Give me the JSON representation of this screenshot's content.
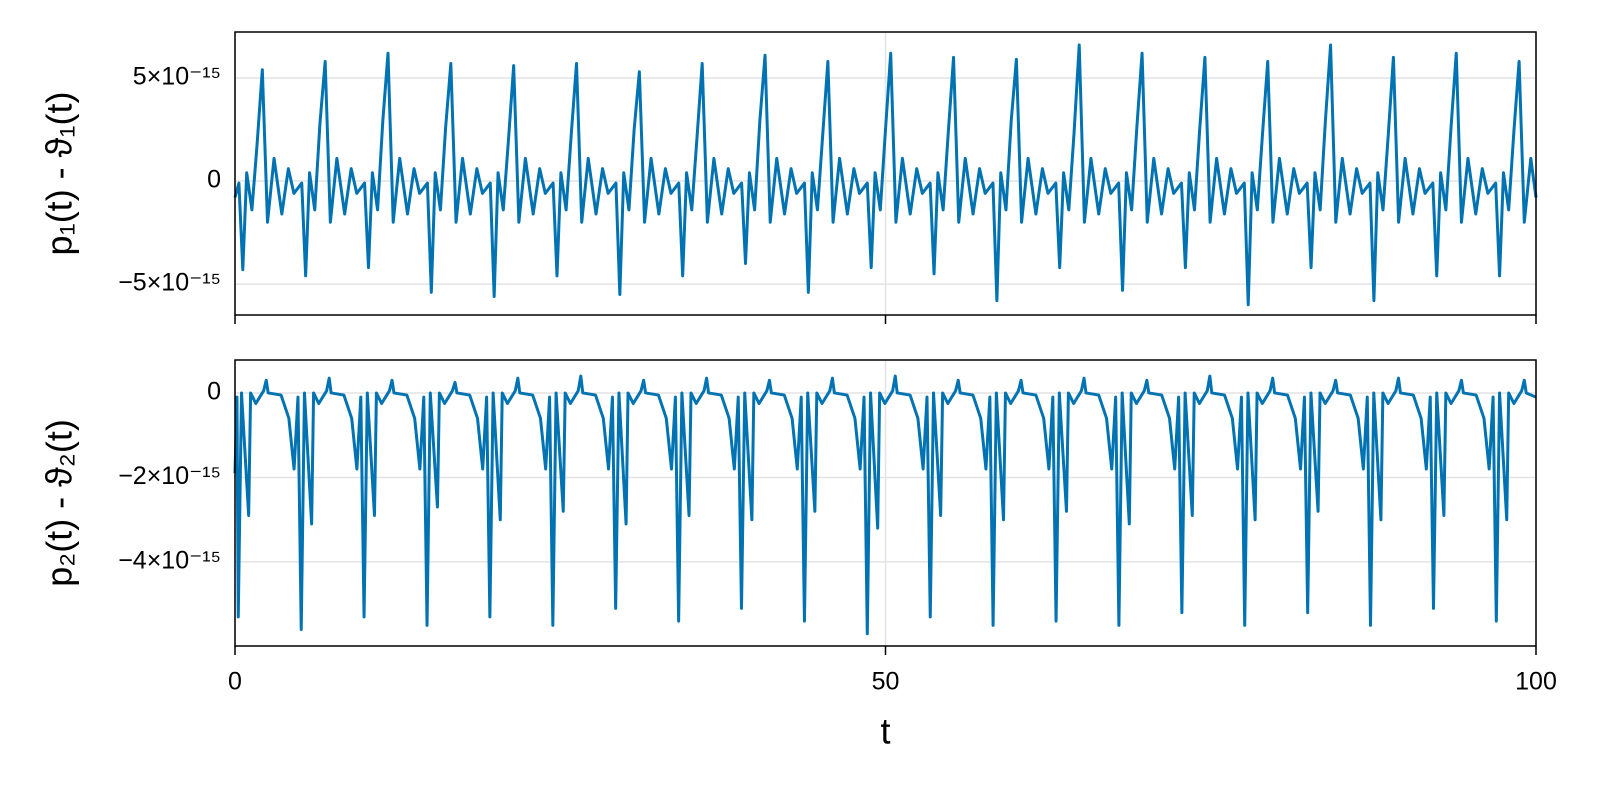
{
  "chart_data": [
    {
      "type": "line",
      "y_label": "p₁(t) - ϑ₁(t)",
      "color": "#0173b2",
      "grid": true,
      "xlim": [
        0,
        100
      ],
      "xticks": [
        0,
        50,
        100
      ],
      "ylim": [
        -6.5e-15,
        7.23e-15
      ],
      "yticks": [
        {
          "value": 5e-15,
          "label": "5×10⁻¹⁵"
        },
        0,
        {
          "value": -5e-15,
          "label": "−5×10⁻¹⁵"
        }
      ],
      "x": [
        0,
        0.3,
        0.6,
        0.9,
        1.3,
        1.7,
        2.1,
        2.5,
        3.0,
        3.6,
        4.1,
        4.53,
        5.13,
        5.43,
        5.73,
        6.13,
        6.53,
        6.93,
        7.33,
        7.83,
        8.43,
        8.93,
        9.36,
        9.96,
        10.26,
        10.56,
        10.96,
        11.36,
        11.76,
        12.16,
        12.66,
        13.26,
        13.76,
        14.19,
        14.79,
        15.09,
        15.39,
        15.79,
        16.19,
        16.59,
        16.99,
        17.49,
        18.09,
        18.59,
        19.02,
        19.62,
        19.92,
        20.22,
        20.62,
        21.02,
        21.42,
        21.82,
        22.32,
        22.92,
        23.42,
        23.85,
        24.45,
        24.75,
        25.05,
        25.45,
        25.85,
        26.25,
        26.65,
        27.15,
        27.75,
        28.25,
        28.68,
        29.28,
        29.58,
        29.88,
        30.28,
        30.68,
        31.08,
        31.48,
        31.98,
        32.58,
        33.08,
        33.51,
        34.11,
        34.41,
        34.71,
        35.11,
        35.51,
        35.91,
        36.31,
        36.81,
        37.41,
        37.91,
        38.34,
        38.94,
        39.24,
        39.54,
        39.94,
        40.34,
        40.74,
        41.14,
        41.64,
        42.24,
        42.74,
        43.17,
        43.77,
        44.07,
        44.37,
        44.77,
        45.17,
        45.57,
        45.97,
        46.47,
        47.07,
        47.57,
        48.0,
        48.6,
        48.9,
        49.2,
        49.6,
        50.0,
        50.4,
        50.8,
        51.3,
        51.9,
        52.4,
        52.83,
        53.43,
        53.73,
        54.03,
        54.43,
        54.83,
        55.23,
        55.63,
        56.13,
        56.73,
        57.23,
        57.66,
        58.26,
        58.56,
        58.86,
        59.26,
        59.66,
        60.06,
        60.46,
        60.96,
        61.56,
        62.06,
        62.49,
        63.09,
        63.39,
        63.69,
        64.09,
        64.49,
        64.89,
        65.29,
        65.79,
        66.39,
        66.89,
        67.32,
        67.92,
        68.22,
        68.52,
        68.92,
        69.32,
        69.72,
        70.12,
        70.62,
        71.22,
        71.72,
        72.15,
        72.75,
        73.05,
        73.35,
        73.75,
        74.15,
        74.55,
        74.95,
        75.45,
        76.05,
        76.55,
        76.98,
        77.58,
        77.88,
        78.18,
        78.58,
        78.98,
        79.38,
        79.78,
        80.28,
        80.88,
        81.38,
        81.81,
        82.41,
        82.71,
        83.01,
        83.41,
        83.81,
        84.21,
        84.61,
        85.11,
        85.71,
        86.21,
        86.64,
        87.24,
        87.54,
        87.84,
        88.24,
        88.64,
        89.04,
        89.44,
        89.94,
        90.54,
        91.04,
        91.47,
        92.07,
        92.37,
        92.67,
        93.07,
        93.47,
        93.87,
        94.27,
        94.77,
        95.37,
        95.87,
        96.3,
        96.9,
        97.2,
        97.5,
        97.9,
        98.3,
        98.7,
        99.1,
        99.6,
        100
      ],
      "values": [
        -8e-16,
        -1e-16,
        -4.3e-15,
        4e-16,
        -1.4e-15,
        1.8e-15,
        5.4e-15,
        -2e-15,
        1.1e-15,
        -1.6e-15,
        6e-16,
        -6e-16,
        -1e-16,
        -4.6e-15,
        4e-16,
        -1.4e-15,
        2.8e-15,
        5.8e-15,
        -2e-15,
        1.1e-15,
        -1.6e-15,
        6e-16,
        -6e-16,
        -1e-16,
        -4.2e-15,
        4e-16,
        -1.4e-15,
        2.9e-15,
        6.2e-15,
        -2e-15,
        1.1e-15,
        -1.6e-15,
        6e-16,
        -6e-16,
        -1e-16,
        -5.4e-15,
        4e-16,
        -1.4e-15,
        2.6e-15,
        5.7e-15,
        -2e-15,
        1.1e-15,
        -1.6e-15,
        6e-16,
        -6e-16,
        -1e-16,
        -5.6e-15,
        4e-16,
        -1.4e-15,
        2e-15,
        5.6e-15,
        -2e-15,
        1.1e-15,
        -1.6e-15,
        6e-16,
        -6e-16,
        -1e-16,
        -4.6e-15,
        4e-16,
        -1.4e-15,
        2.3e-15,
        5.7e-15,
        -2e-15,
        1.1e-15,
        -1.6e-15,
        6e-16,
        -6e-16,
        -1e-16,
        -5.5e-15,
        4e-16,
        -1.4e-15,
        2.5e-15,
        5.3e-15,
        -2e-15,
        1.1e-15,
        -1.6e-15,
        6e-16,
        -6e-16,
        -1e-16,
        -4.6e-15,
        4e-16,
        -1.4e-15,
        2.1e-15,
        5.7e-15,
        -2e-15,
        1.1e-15,
        -1.6e-15,
        6e-16,
        -6e-16,
        -1e-16,
        -4e-15,
        4e-16,
        -1.4e-15,
        2.9e-15,
        6.1e-15,
        -2e-15,
        1.1e-15,
        -1.6e-15,
        6e-16,
        -6e-16,
        -1e-16,
        -5.4e-15,
        4e-16,
        -1.4e-15,
        2.2e-15,
        5.8e-15,
        -2e-15,
        1.1e-15,
        -1.6e-15,
        6e-16,
        -6e-16,
        -1e-16,
        -4.2e-15,
        4e-16,
        -1.4e-15,
        2.5e-15,
        6.2e-15,
        -2e-15,
        1.1e-15,
        -1.6e-15,
        6e-16,
        -6e-16,
        -1e-16,
        -4.5e-15,
        4e-16,
        -1.4e-15,
        2.4e-15,
        6e-15,
        -2e-15,
        1.1e-15,
        -1.6e-15,
        6e-16,
        -6e-16,
        -1e-16,
        -5.8e-15,
        4e-16,
        -1.4e-15,
        2.9e-15,
        5.9e-15,
        -2e-15,
        1.1e-15,
        -1.6e-15,
        6e-16,
        -6e-16,
        -1e-16,
        -4.2e-15,
        4e-16,
        -1.4e-15,
        2.3e-15,
        6.6e-15,
        -2e-15,
        1.1e-15,
        -1.6e-15,
        6e-16,
        -6e-16,
        -1e-16,
        -5.3e-15,
        4e-16,
        -1.4e-15,
        2.6e-15,
        6.2e-15,
        -2e-15,
        1.1e-15,
        -1.6e-15,
        6e-16,
        -6e-16,
        -1e-16,
        -4.2e-15,
        4e-16,
        -1.4e-15,
        2.5e-15,
        6e-15,
        -2e-15,
        1.1e-15,
        -1.6e-15,
        6e-16,
        -6e-16,
        -1e-16,
        -6e-15,
        4e-16,
        -1.4e-15,
        2.3e-15,
        5.8e-15,
        -2e-15,
        1.1e-15,
        -1.6e-15,
        6e-16,
        -6e-16,
        -1e-16,
        -4.2e-15,
        4e-16,
        -1.4e-15,
        2.9e-15,
        6.6e-15,
        -2e-15,
        1.1e-15,
        -1.6e-15,
        6e-16,
        -6e-16,
        -1e-16,
        -5.8e-15,
        4e-16,
        -1.4e-15,
        2.2e-15,
        6e-15,
        -2e-15,
        1.1e-15,
        -1.6e-15,
        6e-16,
        -6e-16,
        -1e-16,
        -4.6e-15,
        4e-16,
        -1.4e-15,
        2.6e-15,
        6.2e-15,
        -2e-15,
        1.1e-15,
        -1.6e-15,
        6e-16,
        -6e-16,
        -1e-16,
        -4.6e-15,
        4e-16,
        -1.4e-15,
        2.4e-15,
        5.8e-15,
        -2e-15,
        1.1e-15,
        -8e-16
      ]
    },
    {
      "type": "line",
      "y_label": "p₂(t) - ϑ₂(t)",
      "x_label": "t",
      "color": "#0173b2",
      "grid": true,
      "xlim": [
        0,
        100
      ],
      "xticks": [
        0,
        50,
        100
      ],
      "ylim": [
        -5.99e-15,
        7.8e-16
      ],
      "yticks": [
        0,
        {
          "value": -2e-15,
          "label": "−2×10⁻¹⁵"
        },
        {
          "value": -4e-15,
          "label": "−4×10⁻¹⁵"
        }
      ],
      "x": [
        0,
        0.15,
        0.25,
        0.5,
        1.05,
        1.2,
        1.6,
        2.2,
        2.4,
        2.55,
        3.54,
        4.14,
        4.54,
        4.84,
        5.09,
        5.34,
        5.89,
        6.04,
        6.44,
        7.04,
        7.24,
        7.39,
        8.37,
        8.97,
        9.37,
        9.67,
        9.92,
        10.17,
        10.72,
        10.87,
        11.27,
        11.87,
        12.07,
        12.22,
        13.21,
        13.81,
        14.21,
        14.51,
        14.76,
        15.01,
        15.56,
        15.71,
        16.11,
        16.71,
        16.91,
        17.06,
        18.04,
        18.64,
        19.04,
        19.34,
        19.59,
        19.84,
        20.39,
        20.54,
        20.94,
        21.54,
        21.74,
        21.89,
        22.88,
        23.48,
        23.88,
        24.18,
        24.43,
        24.68,
        25.23,
        25.38,
        25.78,
        26.38,
        26.58,
        26.73,
        27.71,
        28.31,
        28.71,
        29.01,
        29.26,
        29.51,
        30.06,
        30.21,
        30.61,
        31.21,
        31.41,
        31.56,
        32.55,
        33.15,
        33.55,
        33.85,
        34.1,
        34.35,
        34.9,
        35.05,
        35.45,
        36.05,
        36.25,
        36.4,
        37.38,
        37.98,
        38.38,
        38.68,
        38.93,
        39.18,
        39.73,
        39.88,
        40.28,
        40.88,
        41.08,
        41.23,
        42.22,
        42.82,
        43.22,
        43.52,
        43.77,
        44.02,
        44.57,
        44.72,
        45.12,
        45.72,
        45.92,
        46.07,
        47.05,
        47.65,
        48.05,
        48.35,
        48.6,
        48.85,
        49.4,
        49.55,
        49.95,
        50.55,
        50.75,
        50.9,
        51.89,
        52.49,
        52.89,
        53.19,
        53.44,
        53.69,
        54.24,
        54.39,
        54.79,
        55.39,
        55.59,
        55.74,
        56.72,
        57.32,
        57.72,
        58.02,
        58.27,
        58.52,
        59.07,
        59.22,
        59.62,
        60.22,
        60.42,
        60.57,
        61.56,
        62.16,
        62.56,
        62.86,
        63.11,
        63.36,
        63.91,
        64.06,
        64.46,
        65.06,
        65.26,
        65.41,
        66.39,
        66.99,
        67.39,
        67.69,
        67.94,
        68.19,
        68.74,
        68.89,
        69.29,
        69.89,
        70.09,
        70.24,
        71.23,
        71.83,
        72.23,
        72.53,
        72.78,
        73.03,
        73.58,
        73.73,
        74.13,
        74.73,
        74.93,
        75.08,
        76.06,
        76.66,
        77.06,
        77.36,
        77.61,
        77.86,
        78.41,
        78.56,
        78.96,
        79.56,
        79.76,
        79.91,
        80.9,
        81.5,
        81.9,
        82.2,
        82.45,
        82.7,
        83.25,
        83.4,
        83.8,
        84.4,
        84.6,
        84.75,
        85.73,
        86.33,
        86.73,
        87.03,
        87.28,
        87.53,
        88.08,
        88.23,
        88.63,
        89.23,
        89.43,
        89.58,
        90.57,
        91.17,
        91.57,
        91.87,
        92.12,
        92.37,
        92.92,
        93.07,
        93.47,
        94.07,
        94.27,
        94.42,
        95.4,
        96.0,
        96.4,
        96.7,
        96.95,
        97.2,
        97.75,
        97.9,
        98.3,
        98.9,
        99.1,
        99.25,
        100
      ],
      "values": [
        -1.9e-15,
        -1e-16,
        -5.3e-15,
        0,
        -2.9e-15,
        0,
        -2.5e-16,
        5e-17,
        3e-16,
        0,
        -5e-17,
        -6e-16,
        -1.8e-15,
        -1e-16,
        -5.6e-15,
        0,
        -3.1e-15,
        0,
        -2.5e-16,
        5e-17,
        3.5e-16,
        0,
        -5e-17,
        -6e-16,
        -1.8e-15,
        -1e-16,
        -5.3e-15,
        0,
        -2.9e-15,
        0,
        -2.5e-16,
        5e-17,
        3e-16,
        0,
        -5e-17,
        -6e-16,
        -1.8e-15,
        -1e-16,
        -5.5e-15,
        0,
        -2.7e-15,
        0,
        -2.5e-16,
        5e-17,
        2.5e-16,
        0,
        -5e-17,
        -6e-16,
        -1.8e-15,
        -1e-16,
        -5.3e-15,
        0,
        -3e-15,
        0,
        -2.5e-16,
        5e-17,
        3.5e-16,
        0,
        -5e-17,
        -6e-16,
        -1.8e-15,
        -1e-16,
        -5.5e-15,
        0,
        -2.8e-15,
        0,
        -2.5e-16,
        5e-17,
        4e-16,
        0,
        -5e-17,
        -6e-16,
        -1.8e-15,
        -1e-16,
        -5.1e-15,
        0,
        -3.1e-15,
        0,
        -2.5e-16,
        5e-17,
        3e-16,
        0,
        -5e-17,
        -6e-16,
        -1.8e-15,
        -1e-16,
        -5.4e-15,
        0,
        -2.9e-15,
        0,
        -2.5e-16,
        5e-17,
        3.5e-16,
        0,
        -5e-17,
        -6e-16,
        -1.8e-15,
        -1e-16,
        -5.1e-15,
        0,
        -3e-15,
        0,
        -2.5e-16,
        5e-17,
        3e-16,
        0,
        -5e-17,
        -6e-16,
        -1.8e-15,
        -1e-16,
        -5.4e-15,
        0,
        -2.8e-15,
        0,
        -2.5e-16,
        5e-17,
        3.5e-16,
        0,
        -5e-17,
        -6e-16,
        -1.8e-15,
        -1e-16,
        -5.7e-15,
        0,
        -3.2e-15,
        0,
        -2.5e-16,
        5e-17,
        4e-16,
        0,
        -5e-17,
        -6e-16,
        -1.8e-15,
        -1e-16,
        -5.3e-15,
        0,
        -2.9e-15,
        0,
        -2.5e-16,
        5e-17,
        3e-16,
        0,
        -5e-17,
        -6e-16,
        -1.8e-15,
        -1e-16,
        -5.5e-15,
        0,
        -3e-15,
        0,
        -2.5e-16,
        5e-17,
        3e-16,
        0,
        -5e-17,
        -6e-16,
        -1.8e-15,
        -1e-16,
        -5.4e-15,
        0,
        -2.8e-15,
        0,
        -2.5e-16,
        5e-17,
        3.5e-16,
        0,
        -5e-17,
        -6e-16,
        -1.8e-15,
        -1e-16,
        -5.5e-15,
        0,
        -3.1e-15,
        0,
        -2.5e-16,
        5e-17,
        3e-16,
        0,
        -5e-17,
        -6e-16,
        -1.8e-15,
        -1e-16,
        -5.2e-15,
        0,
        -2.9e-15,
        0,
        -2.5e-16,
        5e-17,
        4e-16,
        0,
        -5e-17,
        -6e-16,
        -1.8e-15,
        -1e-16,
        -5.5e-15,
        0,
        -3e-15,
        0,
        -2.5e-16,
        5e-17,
        3.5e-16,
        0,
        -5e-17,
        -6e-16,
        -1.8e-15,
        -1e-16,
        -5.2e-15,
        0,
        -2.8e-15,
        0,
        -2.5e-16,
        5e-17,
        3e-16,
        0,
        -5e-17,
        -6e-16,
        -1.8e-15,
        -1e-16,
        -5.5e-15,
        0,
        -3e-15,
        0,
        -2.5e-16,
        5e-17,
        3.5e-16,
        0,
        -5e-17,
        -6e-16,
        -1.8e-15,
        -1e-16,
        -5.1e-15,
        0,
        -2.9e-15,
        0,
        -2.5e-16,
        5e-17,
        3e-16,
        0,
        -5e-17,
        -6e-16,
        -1.8e-15,
        -1e-16,
        -5.4e-15,
        0,
        -3e-15,
        0,
        -2.5e-16,
        5e-17,
        3e-16,
        0,
        -1e-16
      ]
    }
  ]
}
